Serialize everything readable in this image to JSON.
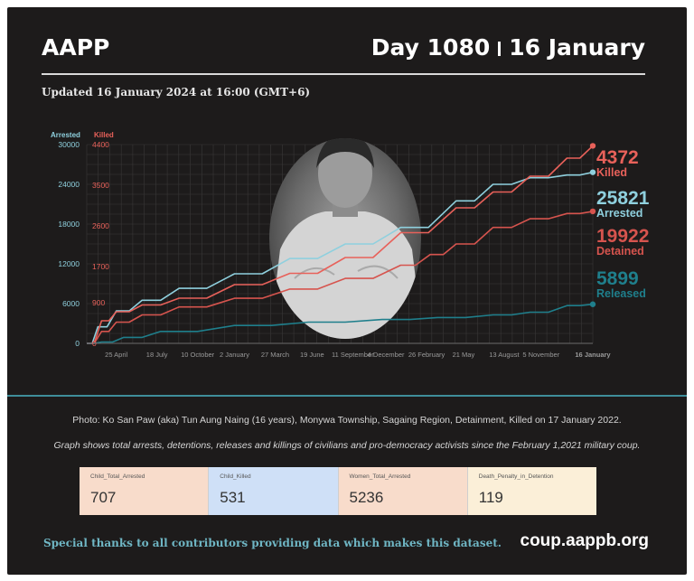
{
  "header": {
    "brand": "AAPP",
    "day_label": "Day 1080",
    "date_label": "16 January",
    "updated": "Updated 16 January 2024 at 16:00 (GMT+6)"
  },
  "photo_subject": "Ko San Paw (aka) Tun Aung Naing",
  "caption": "Photo: Ko San Paw (aka) Tun Aung Naing (16 years), Monywa Township, Sagaing Region, Detainment, Killed on 17 January 2022.",
  "note": "Graph shows total arrests, detentions, releases and killings of civilians and pro-democracy activists since the February 1,2021 military coup.",
  "stats": [
    {
      "label": "Child_Total_Arrested",
      "value": "707",
      "bg": "#f8dccb"
    },
    {
      "label": "Child_Killed",
      "value": "531",
      "bg": "#cfe0f7"
    },
    {
      "label": "Women_Total_Arrested",
      "value": "5236",
      "bg": "#f8dccb"
    },
    {
      "label": "Death_Penalty_in_Detention",
      "value": "119",
      "bg": "#fbefd8"
    }
  ],
  "footer": {
    "thanks": "Special thanks to all contributors providing data which makes this dataset.",
    "site": "coup.aappb.org"
  },
  "colors": {
    "background": "#1d1b1b",
    "arrested": "#8fd0de",
    "killed": "#e8615a",
    "detained": "#d6544e",
    "released": "#1f7f8c"
  },
  "chart_data": {
    "type": "line",
    "left_axis": {
      "label": "Arrested",
      "ticks": [
        0,
        6000,
        12000,
        18000,
        24000,
        30000
      ],
      "ylim": [
        0,
        30000
      ]
    },
    "right_axis": {
      "label": "Killed",
      "ticks": [
        0,
        900,
        1700,
        2600,
        3500,
        4400
      ],
      "ylim": [
        0,
        4400
      ]
    },
    "x_ticks": [
      "25 April",
      "18 July",
      "10 October",
      "2 January",
      "27 March",
      "19 June",
      "11 September",
      "4 December",
      "26 February",
      "21 May",
      "13 August",
      "5 November",
      "16 January"
    ],
    "x_tick_positions": [
      0.08,
      0.19,
      0.3,
      0.4,
      0.51,
      0.61,
      0.72,
      0.81,
      0.92,
      1.02,
      1.13,
      1.23,
      1.37
    ],
    "x_range": [
      0,
      1.37
    ],
    "grid": true,
    "end_labels": [
      {
        "value": "4372",
        "name": "Killed",
        "color": "#e8615a"
      },
      {
        "value": "25821",
        "name": "Arrested",
        "color": "#8fd0de"
      },
      {
        "value": "19922",
        "name": "Detained",
        "color": "#d6544e"
      },
      {
        "value": "5899",
        "name": "Released",
        "color": "#1f7f8c"
      }
    ],
    "series": [
      {
        "name": "Arrested",
        "axis": "left",
        "color": "#8fd0de",
        "x": [
          0,
          0.03,
          0.08,
          0.15,
          0.25,
          0.4,
          0.55,
          0.7,
          0.85,
          1.0,
          1.1,
          1.2,
          1.3,
          1.37
        ],
        "values": [
          0,
          2500,
          4900,
          6500,
          8300,
          10500,
          12800,
          15000,
          17500,
          21500,
          24000,
          25000,
          25400,
          25821
        ]
      },
      {
        "name": "Killed",
        "axis": "right",
        "color": "#e8615a",
        "x": [
          0,
          0.04,
          0.08,
          0.15,
          0.25,
          0.4,
          0.55,
          0.7,
          0.85,
          1.0,
          1.1,
          1.2,
          1.3,
          1.37
        ],
        "values": [
          0,
          500,
          700,
          850,
          1000,
          1300,
          1550,
          1900,
          2450,
          3000,
          3350,
          3700,
          4100,
          4372
        ]
      },
      {
        "name": "Detained",
        "axis": "left",
        "color": "#d6544e",
        "x": [
          0,
          0.04,
          0.08,
          0.15,
          0.25,
          0.4,
          0.55,
          0.7,
          0.85,
          0.93,
          1.0,
          1.1,
          1.2,
          1.3,
          1.37
        ],
        "values": [
          0,
          1800,
          3200,
          4300,
          5500,
          6800,
          8200,
          9800,
          11800,
          13400,
          15000,
          17500,
          18800,
          19600,
          19922
        ]
      },
      {
        "name": "Released",
        "axis": "left",
        "color": "#1f7f8c",
        "x": [
          0,
          0.04,
          0.1,
          0.2,
          0.4,
          0.6,
          0.8,
          0.95,
          1.1,
          1.2,
          1.3,
          1.37
        ],
        "values": [
          0,
          200,
          900,
          1800,
          2700,
          3200,
          3600,
          3900,
          4300,
          4700,
          5700,
          5899
        ]
      }
    ]
  }
}
